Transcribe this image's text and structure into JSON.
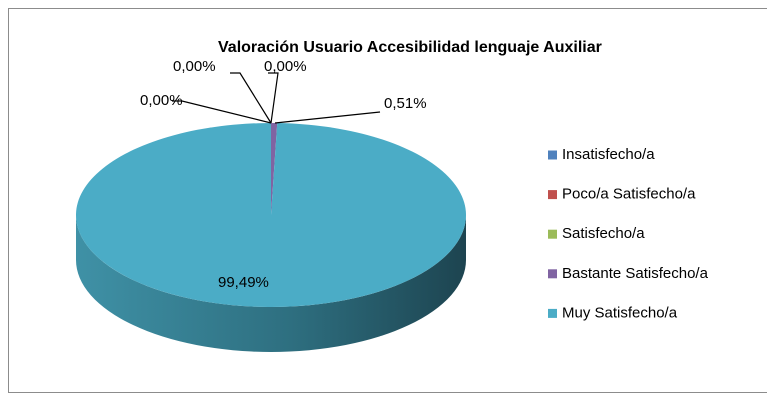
{
  "chart_data": {
    "type": "pie",
    "title": "Valoración Usuario Accesibilidad lenguaje Auxiliar",
    "categories": [
      "Insatisfecho/a",
      "Poco/a Satisfecho/a",
      "Satisfecho/a",
      "Bastante Satisfecho/a",
      "Muy Satisfecho/a"
    ],
    "values": [
      0,
      0,
      0,
      0.51,
      99.49
    ],
    "value_labels": [
      "0,00%",
      "0,00%",
      "0,00%",
      "0,51%",
      "99,49%"
    ],
    "colors": [
      "#4f81bd",
      "#c0504d",
      "#9bbb59",
      "#8064a2",
      "#4bacc6"
    ],
    "legend": "right"
  }
}
